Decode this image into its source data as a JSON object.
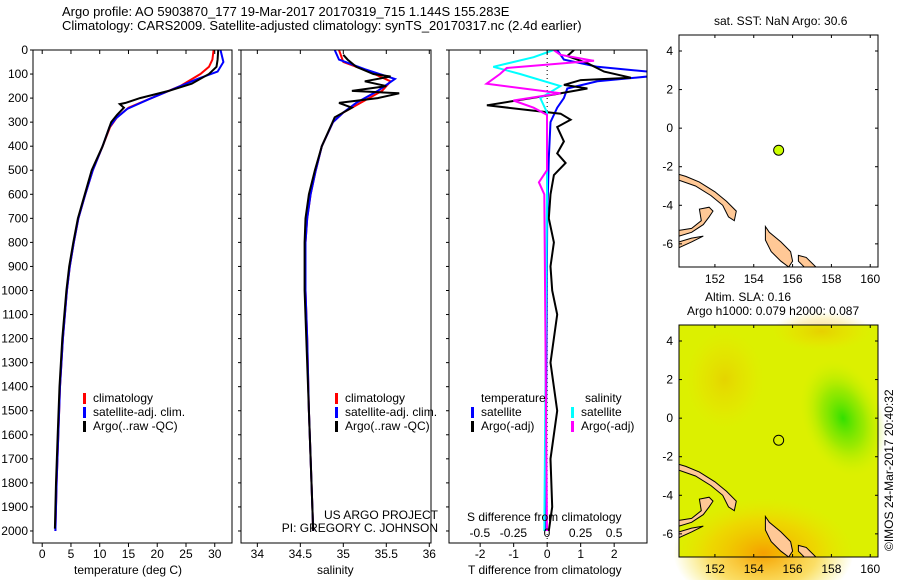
{
  "header": {
    "line1": "Argo profile: AO 5903870_177 19-Mar-2017 20170319_715 1.144S 155.283E",
    "line2": "Climatology: CARS2009. Satellite-adjusted climatology: synTS_20170317.nc (2.4d earlier)"
  },
  "credit": {
    "project": "US ARGO PROJECT",
    "pi": "PI: GREGORY C. JOHNSON",
    "stamp": "©IMOS 24-Mar-2017 20:40:32"
  },
  "colors": {
    "climatology": "#ff0000",
    "satellite": "#0000ff",
    "argo": "#000000",
    "sal_satellite": "#00ffff",
    "sal_argo": "#ff00ff",
    "land": "#ffc896",
    "argo_marker": "#ccff00"
  },
  "chart_data": [
    {
      "type": "line",
      "title": "",
      "xlabel": "temperature (deg C)",
      "ylabel": "",
      "xlim": [
        -1.6,
        33
      ],
      "ylim": [
        2050,
        0
      ],
      "xticks": [
        "0",
        "5",
        "10",
        "15",
        "20",
        "25",
        "30"
      ],
      "yticks": [
        "0",
        "100",
        "200",
        "300",
        "400",
        "500",
        "600",
        "700",
        "800",
        "900",
        "1000",
        "1100",
        "1200",
        "1300",
        "1400",
        "1500",
        "1600",
        "1700",
        "1800",
        "1900",
        "2000"
      ],
      "legend": [
        "climatology",
        "satellite-adj. clim.",
        "Argo(..raw -QC)"
      ],
      "series": [
        {
          "name": "climatology",
          "points": [
            [
              29.8,
              0
            ],
            [
              29.6,
              40
            ],
            [
              29,
              70
            ],
            [
              27.5,
              100
            ],
            [
              24,
              150
            ],
            [
              19,
              200
            ],
            [
              15,
              240
            ],
            [
              13,
              280
            ],
            [
              11.8,
              320
            ],
            [
              10.5,
              400
            ],
            [
              8.8,
              500
            ],
            [
              7.5,
              600
            ],
            [
              6.3,
              700
            ],
            [
              5.5,
              800
            ],
            [
              4.8,
              900
            ],
            [
              4.3,
              1000
            ],
            [
              3.6,
              1200
            ],
            [
              3.1,
              1400
            ],
            [
              2.8,
              1600
            ],
            [
              2.5,
              1800
            ],
            [
              2.3,
              2000
            ]
          ]
        },
        {
          "name": "satellite-adj. clim.",
          "points": [
            [
              31,
              0
            ],
            [
              31.5,
              50
            ],
            [
              30.5,
              90
            ],
            [
              27,
              120
            ],
            [
              23,
              160
            ],
            [
              18.5,
              205
            ],
            [
              14.8,
              245
            ],
            [
              12.8,
              285
            ],
            [
              11.7,
              320
            ],
            [
              10.5,
              400
            ],
            [
              8.8,
              500
            ],
            [
              7.5,
              600
            ],
            [
              6.3,
              700
            ],
            [
              5.5,
              800
            ],
            [
              4.8,
              900
            ],
            [
              4.3,
              1000
            ],
            [
              3.6,
              1200
            ],
            [
              3.1,
              1400
            ],
            [
              2.8,
              1600
            ],
            [
              2.5,
              1800
            ],
            [
              2.3,
              2000
            ]
          ]
        },
        {
          "name": "Argo",
          "points": [
            [
              30.6,
              0
            ],
            [
              30.5,
              40
            ],
            [
              30.3,
              70
            ],
            [
              29,
              100
            ],
            [
              26,
              140
            ],
            [
              22,
              170
            ],
            [
              17,
              200
            ],
            [
              14.5,
              220
            ],
            [
              13.5,
              225
            ],
            [
              14.2,
              240
            ],
            [
              13,
              270
            ],
            [
              12,
              300
            ],
            [
              10.5,
              400
            ],
            [
              8.6,
              500
            ],
            [
              7.4,
              600
            ],
            [
              6.2,
              700
            ],
            [
              5.4,
              800
            ],
            [
              4.7,
              900
            ],
            [
              4.2,
              1000
            ],
            [
              3.5,
              1200
            ],
            [
              3,
              1400
            ],
            [
              2.7,
              1600
            ],
            [
              2.4,
              1800
            ],
            [
              2.2,
              1990
            ]
          ]
        }
      ]
    },
    {
      "type": "line",
      "xlabel": "salinity",
      "xlim": [
        33.81,
        36.02
      ],
      "ylim": [
        2050,
        0
      ],
      "xticks": [
        "34",
        "34.5",
        "35",
        "35.5",
        "36"
      ],
      "legend": [
        "climatology",
        "satellite-adj. clim.",
        "Argo(..raw -QC)"
      ],
      "series": [
        {
          "name": "climatology",
          "points": [
            [
              34.95,
              0
            ],
            [
              35.0,
              50
            ],
            [
              35.3,
              90
            ],
            [
              35.55,
              130
            ],
            [
              35.45,
              170
            ],
            [
              35.2,
              220
            ],
            [
              35.0,
              260
            ],
            [
              34.88,
              300
            ],
            [
              34.75,
              400
            ],
            [
              34.68,
              500
            ],
            [
              34.62,
              600
            ],
            [
              34.58,
              700
            ],
            [
              34.56,
              800
            ],
            [
              34.56,
              1000
            ],
            [
              34.58,
              1200
            ],
            [
              34.6,
              1500
            ],
            [
              34.63,
              1800
            ],
            [
              34.65,
              2000
            ]
          ]
        },
        {
          "name": "satellite-adj. clim.",
          "points": [
            [
              34.9,
              0
            ],
            [
              34.95,
              40
            ],
            [
              35.25,
              80
            ],
            [
              35.6,
              120
            ],
            [
              35.4,
              170
            ],
            [
              35.15,
              220
            ],
            [
              35.0,
              260
            ],
            [
              34.88,
              300
            ],
            [
              34.75,
              400
            ],
            [
              34.68,
              500
            ],
            [
              34.62,
              600
            ],
            [
              34.58,
              700
            ],
            [
              34.56,
              800
            ],
            [
              34.56,
              1000
            ],
            [
              34.58,
              1200
            ],
            [
              34.6,
              1500
            ],
            [
              34.63,
              1800
            ],
            [
              34.65,
              2000
            ]
          ]
        },
        {
          "name": "Argo",
          "points": [
            [
              35.0,
              20
            ],
            [
              35.05,
              40
            ],
            [
              35.15,
              70
            ],
            [
              35.35,
              100
            ],
            [
              35.55,
              110
            ],
            [
              35.25,
              130
            ],
            [
              35.5,
              150
            ],
            [
              35.1,
              170
            ],
            [
              35.65,
              180
            ],
            [
              35.4,
              200
            ],
            [
              34.95,
              220
            ],
            [
              35.1,
              240
            ],
            [
              34.9,
              280
            ],
            [
              34.85,
              320
            ],
            [
              34.75,
              400
            ],
            [
              34.67,
              500
            ],
            [
              34.6,
              600
            ],
            [
              34.56,
              700
            ],
            [
              34.55,
              800
            ],
            [
              34.55,
              1000
            ],
            [
              34.57,
              1200
            ],
            [
              34.6,
              1500
            ],
            [
              34.63,
              1800
            ],
            [
              34.65,
              2000
            ]
          ]
        }
      ]
    },
    {
      "type": "line",
      "xlabel": "T difference from climatology",
      "x2label": "S difference from climatology",
      "xlim": [
        -2.93,
        2.98
      ],
      "x2lim": [
        -0.73,
        0.745
      ],
      "ylim": [
        2050,
        0
      ],
      "xticks": [
        "-2",
        "-1",
        "0",
        "1",
        "2"
      ],
      "x2ticks": [
        "-0.5",
        "-0.25",
        "0",
        "0.25",
        "0.5"
      ],
      "legend": {
        "temperature_title": "temperature",
        "salinity_title": "salinity",
        "t_sat": "satellite",
        "t_argo": "Argo(-adj)",
        "s_sat": "satellite",
        "s_argo": "Argo(-adj)"
      },
      "series": [
        {
          "name": "T satellite",
          "axis": "T",
          "points": [
            [
              0.3,
              0
            ],
            [
              0.5,
              40
            ],
            [
              1.5,
              70
            ],
            [
              3,
              90
            ],
            [
              3,
              110
            ],
            [
              1.5,
              130
            ],
            [
              0.6,
              160
            ],
            [
              0.5,
              200
            ],
            [
              0.3,
              240
            ],
            [
              0.1,
              300
            ],
            [
              0.05,
              450
            ],
            [
              0,
              700
            ],
            [
              -0.02,
              1200
            ],
            [
              -0.05,
              2000
            ]
          ]
        },
        {
          "name": "T Argo",
          "axis": "T",
          "points": [
            [
              0.8,
              0
            ],
            [
              0.6,
              25
            ],
            [
              1.2,
              55
            ],
            [
              1.7,
              90
            ],
            [
              2.5,
              115
            ],
            [
              1.0,
              125
            ],
            [
              0.5,
              145
            ],
            [
              1.2,
              160
            ],
            [
              0.2,
              185
            ],
            [
              -1.8,
              230
            ],
            [
              0.4,
              265
            ],
            [
              0.7,
              290
            ],
            [
              0.3,
              320
            ],
            [
              0.5,
              380
            ],
            [
              0.3,
              430
            ],
            [
              0.55,
              470
            ],
            [
              0.2,
              520
            ],
            [
              0.1,
              600
            ],
            [
              0.05,
              700
            ],
            [
              0.2,
              800
            ],
            [
              0.1,
              900
            ],
            [
              0.15,
              1000
            ],
            [
              0.3,
              1100
            ],
            [
              0.1,
              1300
            ],
            [
              0.3,
              1500
            ],
            [
              0.1,
              1700
            ],
            [
              0.15,
              1900
            ],
            [
              0.05,
              2000
            ]
          ]
        },
        {
          "name": "S satellite",
          "axis": "S",
          "points": [
            [
              0.05,
              0
            ],
            [
              -0.1,
              30
            ],
            [
              -0.4,
              70
            ],
            [
              -0.2,
              100
            ],
            [
              0.1,
              150
            ],
            [
              -0.05,
              200
            ],
            [
              0.0,
              260
            ],
            [
              0.0,
              600
            ],
            [
              -0.02,
              2000
            ]
          ]
        },
        {
          "name": "S Argo",
          "axis": "S",
          "points": [
            [
              0.05,
              0
            ],
            [
              0.1,
              20
            ],
            [
              0.35,
              45
            ],
            [
              -0.3,
              75
            ],
            [
              -0.35,
              100
            ],
            [
              -0.45,
              140
            ],
            [
              0.1,
              180
            ],
            [
              -0.25,
              210
            ],
            [
              -0.1,
              240
            ],
            [
              0.0,
              270
            ],
            [
              0.0,
              500
            ],
            [
              -0.06,
              550
            ],
            [
              -0.02,
              600
            ],
            [
              0.0,
              2000
            ]
          ]
        }
      ]
    },
    {
      "type": "scatter",
      "title": "sat. SST: NaN Argo: 30.6",
      "xlim": [
        150.15,
        160.4
      ],
      "ylim": [
        -7.2,
        4.83
      ],
      "xticks": [
        "152",
        "154",
        "156",
        "158",
        "160"
      ],
      "yticks": [
        "4",
        "2",
        "0",
        "-2",
        "-4",
        "-6"
      ],
      "point": {
        "lon": 155.283,
        "lat": -1.144
      }
    },
    {
      "type": "heatmap",
      "title1": "Altim. SLA: 0.16",
      "title2": "Argo h1000: 0.079 h2000: 0.087",
      "xlim": [
        150.15,
        160.4
      ],
      "ylim": [
        -7.2,
        4.83
      ],
      "xticks": [
        "152",
        "154",
        "156",
        "158",
        "160"
      ],
      "yticks": [
        "4",
        "2",
        "0",
        "-2",
        "-4",
        "-6"
      ],
      "point": {
        "lon": 155.283,
        "lat": -1.144
      }
    }
  ],
  "land": [
    [
      [
        150.15,
        -2.4
      ],
      [
        150.5,
        -2.5
      ],
      [
        151.2,
        -2.8
      ],
      [
        152,
        -3.3
      ],
      [
        152.6,
        -3.8
      ],
      [
        153.1,
        -4.3
      ],
      [
        153.0,
        -4.8
      ],
      [
        152.7,
        -4.6
      ],
      [
        152.4,
        -4.0
      ],
      [
        151.8,
        -3.5
      ],
      [
        151,
        -3.0
      ],
      [
        150.15,
        -2.7
      ]
    ],
    [
      [
        150.15,
        -5.6
      ],
      [
        150.8,
        -5.4
      ],
      [
        151.4,
        -5.0
      ],
      [
        151.7,
        -4.6
      ],
      [
        151.9,
        -4.3
      ],
      [
        151.7,
        -4.1
      ],
      [
        151.2,
        -4.2
      ],
      [
        151.3,
        -4.8
      ],
      [
        150.8,
        -5.2
      ],
      [
        150.15,
        -5.3
      ]
    ],
    [
      [
        150.15,
        -6.2
      ],
      [
        150.8,
        -5.9
      ],
      [
        151.4,
        -5.6
      ],
      [
        150.8,
        -5.7
      ],
      [
        150.15,
        -5.9
      ]
    ],
    [
      [
        154.6,
        -5.1
      ],
      [
        154.8,
        -5.4
      ],
      [
        155.4,
        -5.9
      ],
      [
        155.9,
        -6.4
      ],
      [
        156.0,
        -6.9
      ],
      [
        155.8,
        -7.2
      ],
      [
        155.4,
        -6.9
      ],
      [
        154.9,
        -6.4
      ],
      [
        154.6,
        -5.8
      ]
    ],
    [
      [
        156.3,
        -6.6
      ],
      [
        156.7,
        -6.7
      ],
      [
        157.2,
        -7.2
      ],
      [
        156.6,
        -7.2
      ],
      [
        156.3,
        -6.9
      ]
    ]
  ]
}
